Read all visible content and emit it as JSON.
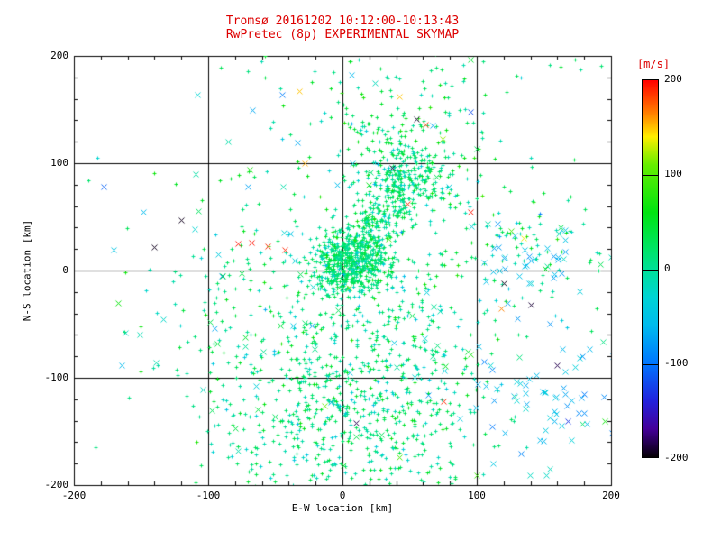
{
  "chart_data": {
    "type": "scatter",
    "title": "Tromsø 20161202 10:12:00-10:13:43",
    "subtitle": "RwPretec (8p) EXPERIMENTAL SKYMAP",
    "xlabel": "E-W location [km]",
    "ylabel": "N-S location [km]",
    "xlim": [
      -200,
      200
    ],
    "ylim": [
      -200,
      200
    ],
    "xticks": [
      -200,
      -100,
      0,
      100,
      200
    ],
    "yticks": [
      200,
      100,
      0,
      -100,
      -200
    ],
    "grid": true,
    "grid_lines_at": [
      -100,
      0,
      100
    ],
    "markers": [
      "plus",
      "x"
    ],
    "title_color": "#dd0000",
    "colorbar": {
      "label": "[m/s]",
      "min": -200,
      "max": 200,
      "ticks": [
        200,
        100,
        0,
        -100,
        -200
      ],
      "stops": [
        {
          "v": 200,
          "color": "#ff0000"
        },
        {
          "v": 165,
          "color": "#ff8000"
        },
        {
          "v": 140,
          "color": "#ffee00"
        },
        {
          "v": 110,
          "color": "#66ee00"
        },
        {
          "v": 60,
          "color": "#00e410"
        },
        {
          "v": 20,
          "color": "#00e468"
        },
        {
          "v": 0,
          "color": "#00e096"
        },
        {
          "v": -30,
          "color": "#00d4d4"
        },
        {
          "v": -60,
          "color": "#00bbee"
        },
        {
          "v": -100,
          "color": "#0077ff"
        },
        {
          "v": -140,
          "color": "#2222dd"
        },
        {
          "v": -170,
          "color": "#440099"
        },
        {
          "v": -200,
          "color": "#050005"
        }
      ]
    },
    "clusters": [
      {
        "n": 500,
        "cx": 5,
        "cy": 8,
        "sx": 14,
        "sy": 14,
        "v": 15,
        "vs": 20,
        "m": "plus",
        "s": 2
      },
      {
        "n": 450,
        "x0": 0,
        "y0": 0,
        "x1": 55,
        "y1": 100,
        "sx": 12,
        "sy": 12,
        "v": 15,
        "vs": 22,
        "m": "plus",
        "s": 2
      },
      {
        "n": 220,
        "cx": 45,
        "cy": 118,
        "sx": 28,
        "sy": 32,
        "v": 20,
        "vs": 30,
        "m": "plus",
        "s": 2
      },
      {
        "n": 380,
        "cx": 15,
        "cy": -85,
        "sx": 42,
        "sy": 50,
        "v": 10,
        "vs": 25,
        "m": "plus",
        "s": 2
      },
      {
        "n": 280,
        "cx": 5,
        "cy": -150,
        "sx": 50,
        "sy": 35,
        "v": 12,
        "vs": 25,
        "m": "plus",
        "s": 2
      },
      {
        "n": 240,
        "cx": 0,
        "cy": -25,
        "sx": 75,
        "sy": 85,
        "v": 12,
        "vs": 30,
        "m": "plus",
        "s": 2
      },
      {
        "n": 140,
        "cx": 115,
        "cy": 30,
        "sx": 42,
        "sy": 40,
        "v": 5,
        "vs": 35,
        "m": "plus",
        "s": 2
      },
      {
        "n": 110,
        "cx": -60,
        "cy": -60,
        "sx": 45,
        "sy": 65,
        "v": 15,
        "vs": 30,
        "m": "plus",
        "s": 2
      },
      {
        "n": 30,
        "cx": 40,
        "cy": 185,
        "sx": 85,
        "sy": 9,
        "v": 15,
        "vs": 30,
        "m": "plus",
        "s": 2
      },
      {
        "n": 60,
        "cx": 150,
        "cy": -120,
        "sx": 28,
        "sy": 38,
        "v": -60,
        "vs": 20,
        "m": "x",
        "s": 3
      },
      {
        "n": 35,
        "cx": 135,
        "cy": 12,
        "sx": 24,
        "sy": 18,
        "v": -55,
        "vs": 15,
        "m": "x",
        "s": 3
      },
      {
        "n": 40,
        "cx": 0,
        "cy": -10,
        "sx": 140,
        "sy": 120,
        "v": -50,
        "vs": 25,
        "m": "x",
        "s": 3
      },
      {
        "n": 80,
        "cx": 10,
        "cy": -40,
        "sx": 120,
        "sy": 105,
        "v": 25,
        "vs": 45,
        "m": "x",
        "s": 3
      }
    ],
    "points": [
      {
        "x": -78,
        "y": 25,
        "v": 195,
        "m": "x",
        "s": 3
      },
      {
        "x": -68,
        "y": 26,
        "v": 195,
        "m": "x",
        "s": 3
      },
      {
        "x": -56,
        "y": 23,
        "v": 190,
        "m": "x",
        "s": 3
      },
      {
        "x": -43,
        "y": 19,
        "v": 190,
        "m": "x",
        "s": 3
      },
      {
        "x": 95,
        "y": 55,
        "v": 195,
        "m": "x",
        "s": 3
      },
      {
        "x": 62,
        "y": 136,
        "v": 185,
        "m": "x",
        "s": 3
      },
      {
        "x": 75,
        "y": -122,
        "v": 190,
        "m": "x",
        "s": 3
      },
      {
        "x": 48,
        "y": 62,
        "v": 190,
        "m": "x",
        "s": 3
      },
      {
        "x": -32,
        "y": 167,
        "v": 150,
        "m": "x",
        "s": 3
      },
      {
        "x": -28,
        "y": 100,
        "v": 155,
        "m": "x",
        "s": 3
      },
      {
        "x": 42,
        "y": 162,
        "v": 150,
        "m": "x",
        "s": 3
      },
      {
        "x": 118,
        "y": -35,
        "v": 165,
        "m": "x",
        "s": 3
      },
      {
        "x": -140,
        "y": 22,
        "v": -195,
        "m": "x",
        "s": 3
      },
      {
        "x": -120,
        "y": 47,
        "v": -195,
        "m": "x",
        "s": 3
      },
      {
        "x": 55,
        "y": 141,
        "v": -190,
        "m": "x",
        "s": 3
      },
      {
        "x": 37,
        "y": 96,
        "v": -190,
        "m": "x",
        "s": 3
      },
      {
        "x": 120,
        "y": -12,
        "v": -195,
        "m": "x",
        "s": 3
      },
      {
        "x": 140,
        "y": -32,
        "v": -190,
        "m": "x",
        "s": 3
      },
      {
        "x": 160,
        "y": -88,
        "v": -185,
        "m": "x",
        "s": 3
      },
      {
        "x": 10,
        "y": -142,
        "v": -185,
        "m": "x",
        "s": 3
      },
      {
        "x": -178,
        "y": 78,
        "v": -110,
        "m": "x",
        "s": 3
      },
      {
        "x": 95,
        "y": 148,
        "v": -120,
        "m": "x",
        "s": 3
      },
      {
        "x": 168,
        "y": -140,
        "v": -130,
        "m": "x",
        "s": 3
      },
      {
        "x": -148,
        "y": 55,
        "v": -60,
        "m": "x",
        "s": 3
      }
    ]
  }
}
